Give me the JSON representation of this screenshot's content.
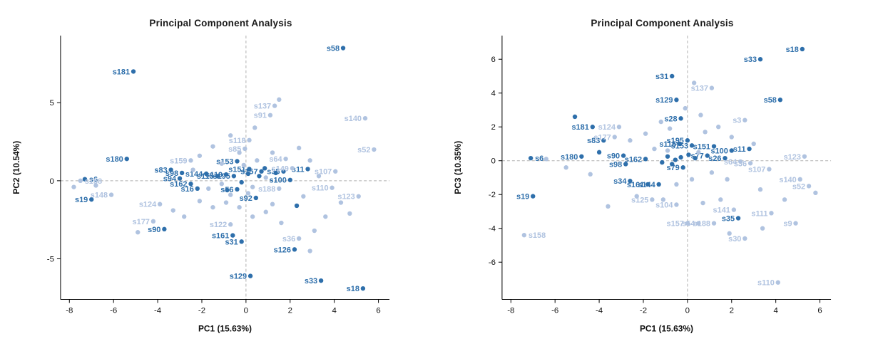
{
  "page": {
    "background": "#ffffff"
  },
  "chart_data": [
    {
      "type": "scatter",
      "title": "Principal Component Analysis",
      "xlabel": "PC1 (15.63%)",
      "ylabel": "PC2 (10.54%)",
      "xlim": [
        -8.4,
        6.5
      ],
      "ylim": [
        -7.6,
        9.3
      ],
      "xticks": [
        -8,
        -6,
        -4,
        -2,
        0,
        2,
        4,
        6
      ],
      "yticks": [
        -5,
        0,
        5
      ],
      "grid": false,
      "ref_lines": "dashed zero lines",
      "ref_color": "#b0b0b0",
      "legend": null,
      "groups": {
        "d": "#2e6fab",
        "l": "#b0c3e0"
      },
      "points": [
        [
          4.4,
          8.5,
          "s58",
          "d"
        ],
        [
          -5.1,
          7.0,
          "s181",
          "d"
        ],
        [
          -5.4,
          1.4,
          "s180",
          "d"
        ],
        [
          -3.4,
          0.7,
          "s83",
          "d"
        ],
        [
          -7.3,
          0.1,
          "s6",
          "d"
        ],
        [
          -7.0,
          -1.2,
          "s19",
          "d"
        ],
        [
          -3.7,
          -3.1,
          "s90",
          "d"
        ],
        [
          -3.0,
          0.15,
          "s94",
          "d"
        ],
        [
          -2.9,
          0.5,
          "s98",
          "d"
        ],
        [
          -2.5,
          -0.2,
          "s162",
          "d"
        ],
        [
          -2.2,
          -0.5,
          "s16",
          "d"
        ],
        [
          -1.8,
          0.45,
          "s144",
          "d"
        ],
        [
          -0.6,
          -3.5,
          "s161",
          "d"
        ],
        [
          -0.2,
          -3.9,
          "s31",
          "d"
        ],
        [
          0.2,
          -6.1,
          "s129",
          "d"
        ],
        [
          2.2,
          -4.4,
          "s126",
          "d"
        ],
        [
          3.4,
          -6.4,
          "s33",
          "d"
        ],
        [
          5.3,
          -6.9,
          "s18",
          "d"
        ],
        [
          1.7,
          0.6,
          "s35",
          "d"
        ],
        [
          2.0,
          0.05,
          "s100",
          "d"
        ],
        [
          2.8,
          0.75,
          "s11",
          "d"
        ],
        [
          0.7,
          0.6,
          "s157",
          "d"
        ],
        [
          0.15,
          0.75,
          "s151",
          "d"
        ],
        [
          -0.4,
          1.25,
          "s153",
          "d"
        ],
        [
          -0.9,
          0.4,
          "s119",
          "d"
        ],
        [
          -1.3,
          0.3,
          "s115",
          "d"
        ],
        [
          -0.55,
          0.3,
          "s195",
          "d"
        ],
        [
          -0.4,
          -0.55,
          "s56",
          "d"
        ],
        [
          0.45,
          -1.1,
          "s92",
          "d"
        ],
        [
          -7.5,
          0.0,
          "s158",
          "l"
        ],
        [
          -6.1,
          -0.9,
          "s148",
          "l"
        ],
        [
          -3.9,
          -1.5,
          "s124",
          "l"
        ],
        [
          -4.2,
          -2.6,
          "s177",
          "l"
        ],
        [
          -2.5,
          1.3,
          "s159",
          "l"
        ],
        [
          1.3,
          4.8,
          "s137",
          "l"
        ],
        [
          1.1,
          4.2,
          "s91",
          "l"
        ],
        [
          0.15,
          2.6,
          "s118",
          "l"
        ],
        [
          -0.05,
          2.05,
          "s85",
          "l"
        ],
        [
          5.4,
          4.0,
          "s140",
          "l"
        ],
        [
          5.8,
          2.0,
          "s52",
          "l"
        ],
        [
          1.8,
          1.4,
          "s64",
          "l"
        ],
        [
          2.1,
          0.8,
          "s149",
          "l"
        ],
        [
          4.05,
          0.6,
          "s107",
          "l"
        ],
        [
          3.9,
          -0.45,
          "s110",
          "l"
        ],
        [
          5.1,
          -1.0,
          "s123",
          "l"
        ],
        [
          1.5,
          -0.5,
          "s188",
          "l"
        ],
        [
          -0.7,
          -2.8,
          "s122",
          "l"
        ],
        [
          2.4,
          -3.7,
          "s36",
          "l"
        ],
        [
          -7.8,
          -0.4,
          "",
          "l"
        ],
        [
          -6.8,
          -0.3,
          "",
          "l"
        ],
        [
          -4.9,
          -3.3,
          "",
          "l"
        ],
        [
          -3.3,
          -1.9,
          "",
          "l"
        ],
        [
          -2.8,
          -2.3,
          "",
          "l"
        ],
        [
          -2.1,
          -1.3,
          "",
          "l"
        ],
        [
          -1.5,
          -1.7,
          "",
          "l"
        ],
        [
          -0.9,
          -1.4,
          "",
          "l"
        ],
        [
          -0.3,
          -1.7,
          "",
          "l"
        ],
        [
          0.3,
          -2.3,
          "",
          "l"
        ],
        [
          0.9,
          -2.0,
          "",
          "l"
        ],
        [
          1.6,
          -2.7,
          "",
          "l"
        ],
        [
          2.9,
          -4.5,
          "",
          "l"
        ],
        [
          3.6,
          -2.3,
          "",
          "l"
        ],
        [
          4.3,
          -1.4,
          "",
          "l"
        ],
        [
          1.5,
          5.2,
          "",
          "l"
        ],
        [
          0.4,
          3.4,
          "",
          "l"
        ],
        [
          -0.7,
          2.9,
          "",
          "l"
        ],
        [
          -1.5,
          2.2,
          "",
          "l"
        ],
        [
          -2.1,
          1.6,
          "",
          "l"
        ],
        [
          -1.1,
          1.1,
          "",
          "l"
        ],
        [
          2.4,
          2.1,
          "",
          "l"
        ],
        [
          2.9,
          1.3,
          "",
          "l"
        ],
        [
          1.2,
          1.8,
          "",
          "l"
        ],
        [
          0.5,
          1.3,
          "",
          "l"
        ],
        [
          -0.1,
          1.0,
          "",
          "l"
        ],
        [
          0.9,
          0.2,
          "",
          "l"
        ],
        [
          0.3,
          -0.4,
          "",
          "l"
        ],
        [
          -0.7,
          -0.9,
          "",
          "l"
        ],
        [
          1.2,
          -1.5,
          "",
          "l"
        ],
        [
          -1.7,
          -0.5,
          "",
          "l"
        ],
        [
          -1.1,
          -0.2,
          "",
          "l"
        ],
        [
          0.1,
          -0.8,
          "",
          "l"
        ],
        [
          3.3,
          0.3,
          "",
          "l"
        ],
        [
          2.6,
          -1.0,
          "",
          "l"
        ],
        [
          -2.4,
          0.7,
          "",
          "l"
        ],
        [
          -0.3,
          1.8,
          "",
          "l"
        ],
        [
          4.7,
          -2.1,
          "",
          "l"
        ],
        [
          3.1,
          -3.2,
          "",
          "l"
        ],
        [
          0.1,
          0.45,
          "",
          "d"
        ],
        [
          0.6,
          0.3,
          "",
          "d"
        ],
        [
          -0.2,
          -0.1,
          "",
          "d"
        ],
        [
          0.85,
          0.8,
          "",
          "d"
        ],
        [
          1.35,
          0.5,
          "",
          "d"
        ],
        [
          -0.85,
          -0.6,
          "",
          "d"
        ],
        [
          2.3,
          -1.6,
          "",
          "d"
        ]
      ]
    },
    {
      "type": "scatter",
      "title": "Principal Component Analysis",
      "xlabel": "PC1 (15.63%)",
      "ylabel": "PC3 (10.35%)",
      "xlim": [
        -8.4,
        6.5
      ],
      "ylim": [
        -8.2,
        7.4
      ],
      "xticks": [
        -8,
        -6,
        -4,
        -2,
        0,
        2,
        4,
        6
      ],
      "yticks": [
        -6,
        -4,
        -2,
        0,
        2,
        4,
        6
      ],
      "grid": false,
      "ref_lines": "dashed zero lines",
      "ref_color": "#b0b0b0",
      "legend": null,
      "groups": {
        "d": "#2e6fab",
        "l": "#b0c3e0"
      },
      "points": [
        [
          5.2,
          6.6,
          "s18",
          "d"
        ],
        [
          3.3,
          6.0,
          "s33",
          "d"
        ],
        [
          -0.7,
          5.0,
          "s31",
          "d"
        ],
        [
          -0.5,
          3.6,
          "s129",
          "d"
        ],
        [
          4.2,
          3.6,
          "s58",
          "d"
        ],
        [
          -0.3,
          2.5,
          "s28",
          "d"
        ],
        [
          -4.3,
          2.0,
          "s181",
          "d"
        ],
        [
          -3.8,
          1.2,
          "s83",
          "d"
        ],
        [
          1.2,
          0.85,
          "s151",
          "d"
        ],
        [
          2.0,
          0.6,
          "s100",
          "d"
        ],
        [
          2.8,
          0.7,
          "s11",
          "d"
        ],
        [
          0.9,
          0.3,
          "s77",
          "d"
        ],
        [
          1.7,
          0.15,
          "s26",
          "d"
        ],
        [
          -4.8,
          0.25,
          "s180",
          "d"
        ],
        [
          -7.1,
          0.15,
          "s6",
          "d"
        ],
        [
          -2.9,
          0.3,
          "s90",
          "d"
        ],
        [
          -2.8,
          -0.2,
          "s98",
          "d"
        ],
        [
          -1.9,
          0.1,
          "s162",
          "d"
        ],
        [
          -7.0,
          -2.1,
          "s19",
          "d"
        ],
        [
          -2.6,
          -1.2,
          "s34",
          "d"
        ],
        [
          -1.8,
          -1.4,
          "s161",
          "d"
        ],
        [
          -1.3,
          -1.4,
          "s144",
          "d"
        ],
        [
          2.3,
          -3.4,
          "s35",
          "d"
        ],
        [
          -0.2,
          -0.4,
          "s79",
          "d"
        ],
        [
          0.0,
          1.2,
          "s195",
          "d"
        ],
        [
          -0.35,
          1.0,
          "s115",
          "d"
        ],
        [
          0.2,
          0.9,
          "s153",
          "d"
        ],
        [
          1.1,
          4.3,
          "s137",
          "l"
        ],
        [
          2.6,
          2.4,
          "s3",
          "l"
        ],
        [
          -3.1,
          2.0,
          "s124",
          "l"
        ],
        [
          -3.3,
          1.4,
          "s177",
          "l"
        ],
        [
          5.3,
          0.25,
          "s123",
          "l"
        ],
        [
          2.4,
          -0.05,
          "s64",
          "l"
        ],
        [
          2.85,
          -0.15,
          "s36",
          "l"
        ],
        [
          3.7,
          -0.5,
          "s107",
          "l"
        ],
        [
          5.1,
          -1.1,
          "s140",
          "l"
        ],
        [
          5.5,
          -1.5,
          "s52",
          "l"
        ],
        [
          -1.6,
          -2.3,
          "s125",
          "l"
        ],
        [
          -0.5,
          -2.6,
          "s104",
          "l"
        ],
        [
          2.1,
          -2.9,
          "s141",
          "l"
        ],
        [
          3.8,
          -3.1,
          "s111",
          "l"
        ],
        [
          4.9,
          -3.7,
          "s9",
          "l"
        ],
        [
          0.0,
          -3.7,
          "s157",
          "l"
        ],
        [
          0.5,
          -3.7,
          "s54",
          "l"
        ],
        [
          1.2,
          -3.7,
          "s188",
          "l"
        ],
        [
          -7.4,
          -4.4,
          "s158",
          "l"
        ],
        [
          2.6,
          -4.6,
          "s30",
          "l"
        ],
        [
          4.1,
          -7.2,
          "s110",
          "l"
        ],
        [
          -6.4,
          0.1,
          "",
          "l"
        ],
        [
          -5.5,
          -0.4,
          "",
          "l"
        ],
        [
          -4.4,
          -0.8,
          "",
          "l"
        ],
        [
          -3.6,
          -2.7,
          "",
          "l"
        ],
        [
          -2.3,
          -2.1,
          "",
          "l"
        ],
        [
          -1.1,
          -2.3,
          "",
          "l"
        ],
        [
          0.7,
          -2.5,
          "",
          "l"
        ],
        [
          1.5,
          -2.3,
          "",
          "l"
        ],
        [
          3.3,
          -1.7,
          "",
          "l"
        ],
        [
          -2.6,
          1.2,
          "",
          "l"
        ],
        [
          -1.9,
          1.6,
          "",
          "l"
        ],
        [
          -1.2,
          2.3,
          "",
          "l"
        ],
        [
          -0.1,
          3.1,
          "",
          "l"
        ],
        [
          0.6,
          2.7,
          "",
          "l"
        ],
        [
          1.4,
          2.0,
          "",
          "l"
        ],
        [
          2.0,
          1.4,
          "",
          "l"
        ],
        [
          0.8,
          1.7,
          "",
          "l"
        ],
        [
          -0.8,
          1.9,
          "",
          "l"
        ],
        [
          -1.5,
          0.7,
          "",
          "l"
        ],
        [
          -0.9,
          0.6,
          "",
          "l"
        ],
        [
          0.5,
          0.5,
          "",
          "l"
        ],
        [
          1.1,
          -0.7,
          "",
          "l"
        ],
        [
          0.2,
          -1.1,
          "",
          "l"
        ],
        [
          -0.5,
          -1.4,
          "",
          "l"
        ],
        [
          1.8,
          -1.1,
          "",
          "l"
        ],
        [
          3.0,
          1.0,
          "",
          "l"
        ],
        [
          4.4,
          -2.3,
          "",
          "l"
        ],
        [
          3.4,
          -4.0,
          "",
          "l"
        ],
        [
          1.9,
          -4.3,
          "",
          "l"
        ],
        [
          0.3,
          4.6,
          "",
          "l"
        ],
        [
          5.8,
          -1.9,
          "",
          "l"
        ],
        [
          -0.9,
          0.25,
          "",
          "d"
        ],
        [
          -0.55,
          0.05,
          "",
          "d"
        ],
        [
          -0.3,
          0.2,
          "",
          "d"
        ],
        [
          0.05,
          0.35,
          "",
          "d"
        ],
        [
          -0.7,
          -0.2,
          "",
          "d"
        ],
        [
          -1.15,
          -0.1,
          "",
          "d"
        ],
        [
          0.35,
          0.15,
          "",
          "d"
        ],
        [
          -4.0,
          0.5,
          "",
          "d"
        ],
        [
          -5.1,
          2.6,
          "",
          "d"
        ]
      ]
    }
  ]
}
